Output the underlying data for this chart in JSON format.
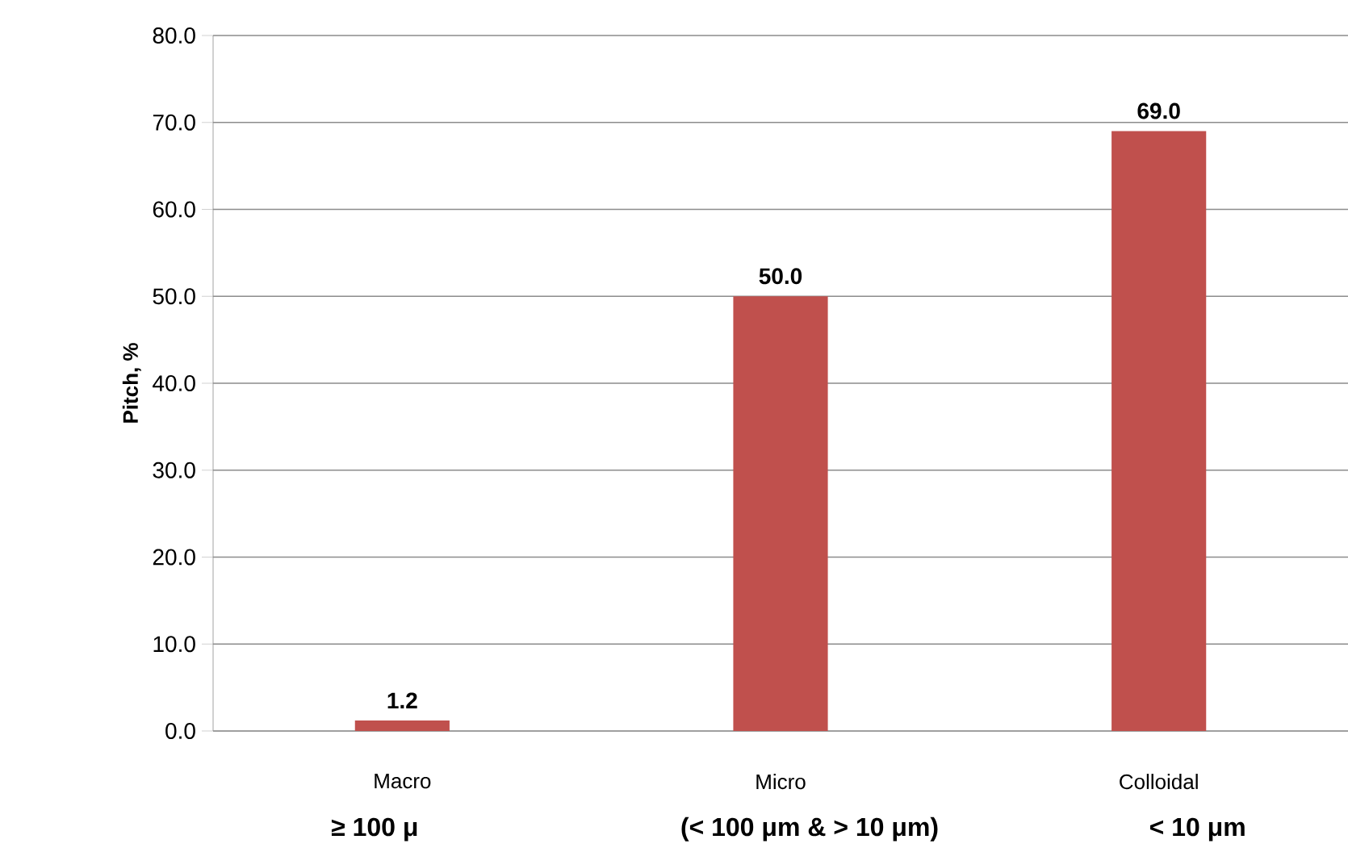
{
  "chart_data": {
    "type": "bar",
    "ylabel": "Pitch, %",
    "categories": [
      "Macro",
      "Micro",
      "Colloidal"
    ],
    "values": [
      1.2,
      50,
      69
    ],
    "value_labels": [
      "1.2",
      "50.0",
      "69.0"
    ],
    "color": "#c0504d",
    "ylim": [
      0,
      80
    ],
    "yticks": [
      {
        "value": 0,
        "label": "0.0"
      },
      {
        "value": 10,
        "label": "10.0"
      },
      {
        "value": 20,
        "label": "20.0"
      },
      {
        "value": 30,
        "label": "30.0"
      },
      {
        "value": 40,
        "label": "40.0"
      },
      {
        "value": 50,
        "label": "50.0"
      },
      {
        "value": 60,
        "label": "60.0"
      },
      {
        "value": 70,
        "label": "70.0"
      },
      {
        "value": 80,
        "label": "80.0"
      }
    ],
    "grid": "y",
    "annotations": [
      "≥ 100 μ",
      "(< 100 μm & > 10 μm)",
      "< 10 μm"
    ]
  }
}
